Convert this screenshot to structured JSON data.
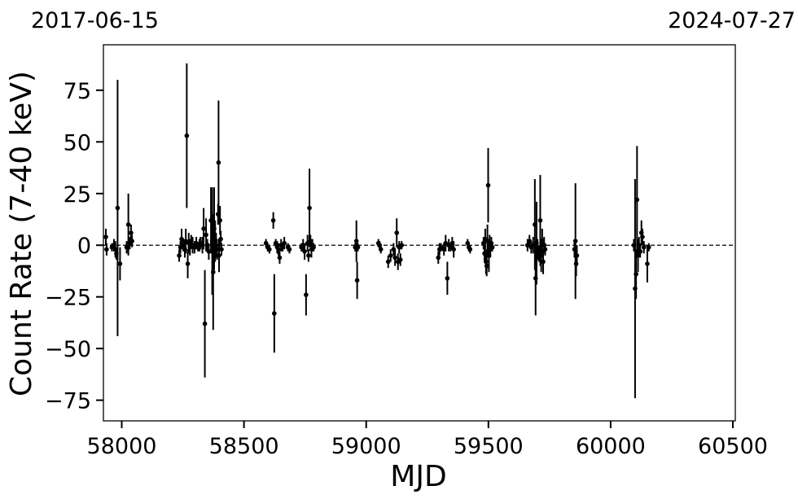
{
  "chart_data": {
    "type": "scatter",
    "title": "",
    "top_left_label": "2017-06-15",
    "top_right_label": "2024-07-27",
    "xlabel": "MJD",
    "ylabel": "Count Rate (7-40 keV)",
    "xlim": [
      57925,
      60510
    ],
    "ylim": [
      -85,
      97
    ],
    "xticks": [
      58000,
      58500,
      59000,
      59500,
      60000,
      60500
    ],
    "xtick_labels": [
      "58000",
      "58500",
      "59000",
      "59500",
      "60000",
      "60500"
    ],
    "yticks": [
      -75,
      -50,
      -25,
      0,
      25,
      50,
      75
    ],
    "ytick_labels": [
      "−75",
      "−50",
      "−25",
      "0",
      "25",
      "50",
      "75"
    ],
    "reference_line": {
      "y": 0,
      "style": "dashed"
    },
    "grid": false,
    "legend": "none",
    "marker_color": "#000000",
    "points": [
      {
        "x": 57935,
        "y": 4,
        "err": 4
      },
      {
        "x": 57938,
        "y": -2,
        "err": 3
      },
      {
        "x": 57960,
        "y": -1,
        "err": 2
      },
      {
        "x": 57968,
        "y": 0,
        "err": 3
      },
      {
        "x": 57974,
        "y": -2,
        "err": 4
      },
      {
        "x": 57978,
        "y": -4,
        "err": 3
      },
      {
        "x": 57983,
        "y": 18,
        "err": 62
      },
      {
        "x": 57993,
        "y": -9,
        "err": 8
      },
      {
        "x": 58020,
        "y": -1,
        "err": 3
      },
      {
        "x": 58027,
        "y": 10,
        "err": 15
      },
      {
        "x": 58033,
        "y": 1,
        "err": 3
      },
      {
        "x": 58038,
        "y": 6,
        "err": 4
      },
      {
        "x": 58042,
        "y": 2,
        "err": 3
      },
      {
        "x": 58235,
        "y": -5,
        "err": 3
      },
      {
        "x": 58240,
        "y": -1,
        "err": 3
      },
      {
        "x": 58245,
        "y": 3,
        "err": 5
      },
      {
        "x": 58252,
        "y": 0,
        "err": 3
      },
      {
        "x": 58258,
        "y": -2,
        "err": 4
      },
      {
        "x": 58262,
        "y": 2,
        "err": 6
      },
      {
        "x": 58266,
        "y": 53,
        "err": 35
      },
      {
        "x": 58270,
        "y": -9,
        "err": 7
      },
      {
        "x": 58274,
        "y": 1,
        "err": 5
      },
      {
        "x": 58279,
        "y": -1,
        "err": 4
      },
      {
        "x": 58284,
        "y": 2,
        "err": 3
      },
      {
        "x": 58290,
        "y": 0,
        "err": 4
      },
      {
        "x": 58298,
        "y": -1,
        "err": 3
      },
      {
        "x": 58305,
        "y": 1,
        "err": 3
      },
      {
        "x": 58312,
        "y": -1,
        "err": 2
      },
      {
        "x": 58318,
        "y": 0,
        "err": 3
      },
      {
        "x": 58322,
        "y": 1,
        "err": 3
      },
      {
        "x": 58330,
        "y": 0,
        "err": 4
      },
      {
        "x": 58335,
        "y": 8,
        "err": 10
      },
      {
        "x": 58340,
        "y": -38,
        "err": 26
      },
      {
        "x": 58345,
        "y": 5,
        "err": 8
      },
      {
        "x": 58350,
        "y": 0,
        "err": 3
      },
      {
        "x": 58356,
        "y": -3,
        "err": 4
      },
      {
        "x": 58365,
        "y": 12,
        "err": 16
      },
      {
        "x": 58370,
        "y": 2,
        "err": 26
      },
      {
        "x": 58374,
        "y": -13,
        "err": 28
      },
      {
        "x": 58378,
        "y": 8,
        "err": 20
      },
      {
        "x": 58382,
        "y": 2,
        "err": 10
      },
      {
        "x": 58386,
        "y": 0,
        "err": 6
      },
      {
        "x": 58390,
        "y": -2,
        "err": 5
      },
      {
        "x": 58394,
        "y": 15,
        "err": 5
      },
      {
        "x": 58396,
        "y": 40,
        "err": 30
      },
      {
        "x": 58398,
        "y": -5,
        "err": 8
      },
      {
        "x": 58402,
        "y": 12,
        "err": 7
      },
      {
        "x": 58405,
        "y": 3,
        "err": 4
      },
      {
        "x": 58408,
        "y": -2,
        "err": 3
      },
      {
        "x": 58590,
        "y": 1,
        "err": 2
      },
      {
        "x": 58597,
        "y": -1,
        "err": 2
      },
      {
        "x": 58604,
        "y": -2,
        "err": 2
      },
      {
        "x": 58620,
        "y": 12,
        "err": 4
      },
      {
        "x": 58624,
        "y": -33,
        "err": 19
      },
      {
        "x": 58630,
        "y": 1,
        "err": 2
      },
      {
        "x": 58636,
        "y": -1,
        "err": 3
      },
      {
        "x": 58641,
        "y": -2,
        "err": 3
      },
      {
        "x": 58646,
        "y": -6,
        "err": 3
      },
      {
        "x": 58652,
        "y": 0,
        "err": 3
      },
      {
        "x": 58658,
        "y": -1,
        "err": 2
      },
      {
        "x": 58665,
        "y": 1,
        "err": 3
      },
      {
        "x": 58680,
        "y": -1,
        "err": 2
      },
      {
        "x": 58686,
        "y": -2,
        "err": 2
      },
      {
        "x": 58735,
        "y": -1,
        "err": 2
      },
      {
        "x": 58742,
        "y": 0,
        "err": 3
      },
      {
        "x": 58748,
        "y": -3,
        "err": 4
      },
      {
        "x": 58754,
        "y": -24,
        "err": 10
      },
      {
        "x": 58760,
        "y": 1,
        "err": 4
      },
      {
        "x": 58764,
        "y": -5,
        "err": 3
      },
      {
        "x": 58768,
        "y": 18,
        "err": 19
      },
      {
        "x": 58772,
        "y": 2,
        "err": 3
      },
      {
        "x": 58776,
        "y": -2,
        "err": 4
      },
      {
        "x": 58780,
        "y": 0,
        "err": 3
      },
      {
        "x": 58785,
        "y": -1,
        "err": 2
      },
      {
        "x": 58955,
        "y": -1,
        "err": 2
      },
      {
        "x": 58960,
        "y": 2,
        "err": 10
      },
      {
        "x": 58963,
        "y": -17,
        "err": 9
      },
      {
        "x": 58966,
        "y": -1,
        "err": 2
      },
      {
        "x": 59050,
        "y": 1,
        "err": 2
      },
      {
        "x": 59055,
        "y": 0,
        "err": 2
      },
      {
        "x": 59060,
        "y": -2,
        "err": 2
      },
      {
        "x": 59090,
        "y": -8,
        "err": 3
      },
      {
        "x": 59100,
        "y": -5,
        "err": 3
      },
      {
        "x": 59112,
        "y": -2,
        "err": 3
      },
      {
        "x": 59118,
        "y": -6,
        "err": 4
      },
      {
        "x": 59125,
        "y": 6,
        "err": 7
      },
      {
        "x": 59130,
        "y": -8,
        "err": 4
      },
      {
        "x": 59135,
        "y": -1,
        "err": 3
      },
      {
        "x": 59140,
        "y": -7,
        "err": 3
      },
      {
        "x": 59145,
        "y": 0,
        "err": 2
      },
      {
        "x": 59295,
        "y": -6,
        "err": 3
      },
      {
        "x": 59300,
        "y": -2,
        "err": 3
      },
      {
        "x": 59306,
        "y": -1,
        "err": 2
      },
      {
        "x": 59318,
        "y": -2,
        "err": 3
      },
      {
        "x": 59325,
        "y": 1,
        "err": 4
      },
      {
        "x": 59332,
        "y": -16,
        "err": 8
      },
      {
        "x": 59338,
        "y": 0,
        "err": 3
      },
      {
        "x": 59345,
        "y": -1,
        "err": 2
      },
      {
        "x": 59352,
        "y": 1,
        "err": 3
      },
      {
        "x": 59358,
        "y": -2,
        "err": 4
      },
      {
        "x": 59415,
        "y": 1,
        "err": 2
      },
      {
        "x": 59420,
        "y": -1,
        "err": 2
      },
      {
        "x": 59425,
        "y": -2,
        "err": 2
      },
      {
        "x": 59480,
        "y": 1,
        "err": 3
      },
      {
        "x": 59484,
        "y": -4,
        "err": 4
      },
      {
        "x": 59487,
        "y": 3,
        "err": 5
      },
      {
        "x": 59490,
        "y": -8,
        "err": 6
      },
      {
        "x": 59493,
        "y": -10,
        "err": 5
      },
      {
        "x": 59496,
        "y": 2,
        "err": 8
      },
      {
        "x": 59499,
        "y": 29,
        "err": 18
      },
      {
        "x": 59502,
        "y": -5,
        "err": 8
      },
      {
        "x": 59505,
        "y": 0,
        "err": 5
      },
      {
        "x": 59508,
        "y": -2,
        "err": 4
      },
      {
        "x": 59512,
        "y": 1,
        "err": 3
      },
      {
        "x": 59516,
        "y": -1,
        "err": 2
      },
      {
        "x": 59660,
        "y": 0,
        "err": 3
      },
      {
        "x": 59668,
        "y": 2,
        "err": 3
      },
      {
        "x": 59675,
        "y": -1,
        "err": 3
      },
      {
        "x": 59683,
        "y": 0,
        "err": 4
      },
      {
        "x": 59690,
        "y": 10,
        "err": 22
      },
      {
        "x": 59693,
        "y": -16,
        "err": 18
      },
      {
        "x": 59697,
        "y": 1,
        "err": 20
      },
      {
        "x": 59701,
        "y": -2,
        "err": 5
      },
      {
        "x": 59706,
        "y": -4,
        "err": 4
      },
      {
        "x": 59712,
        "y": 12,
        "err": 22
      },
      {
        "x": 59716,
        "y": -5,
        "err": 8
      },
      {
        "x": 59720,
        "y": 2,
        "err": 6
      },
      {
        "x": 59724,
        "y": -8,
        "err": 6
      },
      {
        "x": 59728,
        "y": 0,
        "err": 4
      },
      {
        "x": 59732,
        "y": -2,
        "err": 3
      },
      {
        "x": 59852,
        "y": -2,
        "err": 4
      },
      {
        "x": 59856,
        "y": 2,
        "err": 28
      },
      {
        "x": 59859,
        "y": -9,
        "err": 6
      },
      {
        "x": 59862,
        "y": -5,
        "err": 5
      },
      {
        "x": 60095,
        "y": 0,
        "err": 3
      },
      {
        "x": 60100,
        "y": -21,
        "err": 53
      },
      {
        "x": 60104,
        "y": -14,
        "err": 12
      },
      {
        "x": 60108,
        "y": 22,
        "err": 26
      },
      {
        "x": 60112,
        "y": -5,
        "err": 8
      },
      {
        "x": 60116,
        "y": 0,
        "err": 4
      },
      {
        "x": 60121,
        "y": -3,
        "err": 3
      },
      {
        "x": 60126,
        "y": 6,
        "err": 6
      },
      {
        "x": 60130,
        "y": 4,
        "err": 4
      },
      {
        "x": 60136,
        "y": -1,
        "err": 3
      },
      {
        "x": 60150,
        "y": -9,
        "err": 9
      },
      {
        "x": 60156,
        "y": -1,
        "err": 2
      }
    ]
  }
}
